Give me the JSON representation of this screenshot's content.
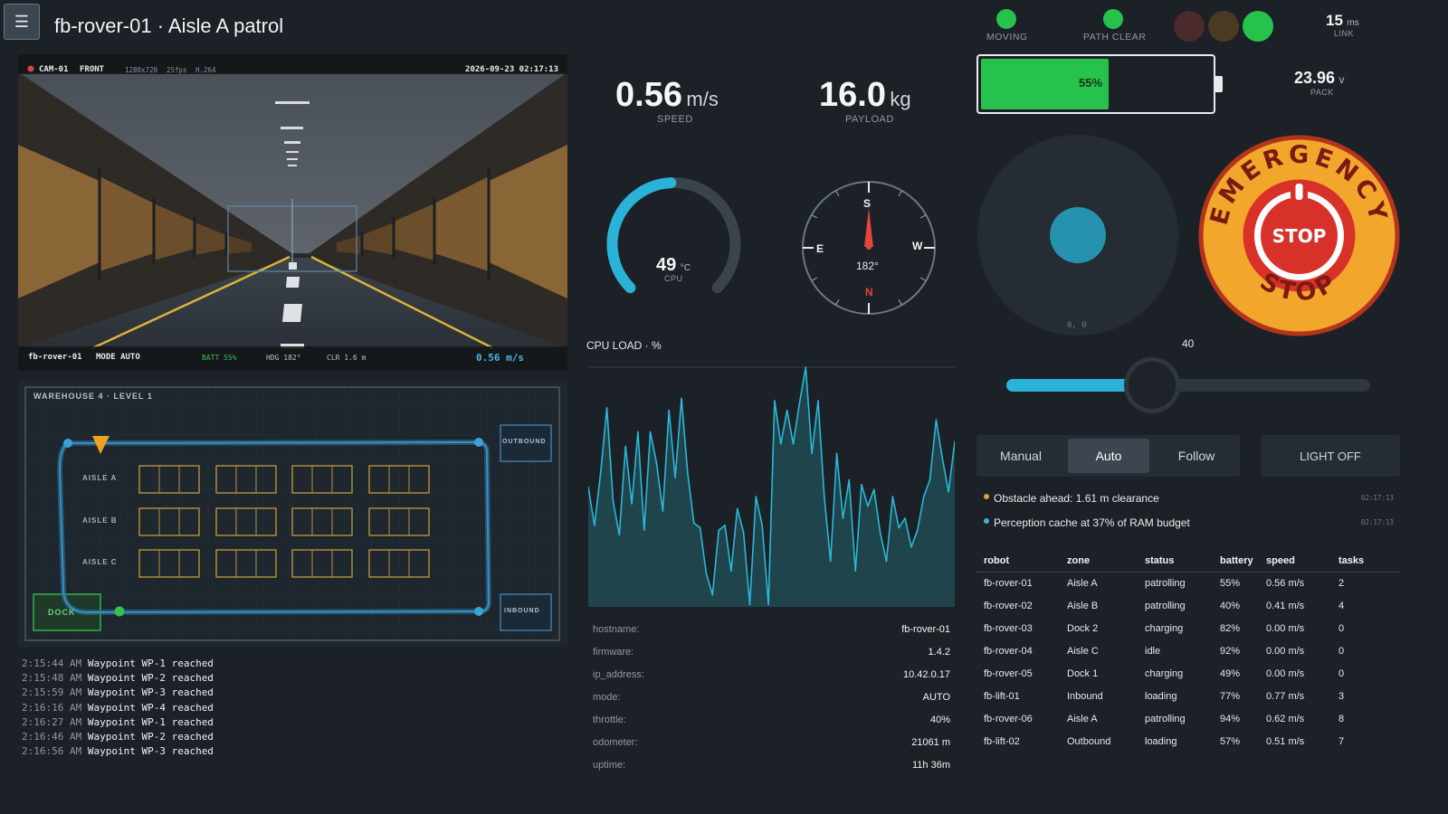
{
  "header": {
    "menu_icon": "hamburger-menu-icon",
    "title": "fb-rover-01 · Aisle A patrol"
  },
  "camera": {
    "cam_id": "CAM-01",
    "direction": "FRONT",
    "resolution": "1280x720",
    "fps": "25fps",
    "codec": "H.264",
    "timestamp": "2026-09-23 02:17:13",
    "robot": "fb-rover-01",
    "mode": "MODE AUTO",
    "battery": "BATT 55%",
    "heading": "HDG 182°",
    "clearance": "CLR 1.6 m",
    "speed": "0.56 m/s"
  },
  "map": {
    "title": "WAREHOUSE 4 · LEVEL 1",
    "aisles": [
      "AISLE A",
      "AISLE B",
      "AISLE C"
    ],
    "zones": {
      "outbound": "OUTBOUND",
      "inbound": "INBOUND",
      "dock": "DOCK"
    }
  },
  "log": [
    {
      "time": "2:15:44 AM",
      "msg": "Waypoint WP-1 reached"
    },
    {
      "time": "2:15:48 AM",
      "msg": "Waypoint WP-2 reached"
    },
    {
      "time": "2:15:59 AM",
      "msg": "Waypoint WP-3 reached"
    },
    {
      "time": "2:16:16 AM",
      "msg": "Waypoint WP-4 reached"
    },
    {
      "time": "2:16:27 AM",
      "msg": "Waypoint WP-1 reached"
    },
    {
      "time": "2:16:46 AM",
      "msg": "Waypoint WP-2 reached"
    },
    {
      "time": "2:16:56 AM",
      "msg": "Waypoint WP-3 reached"
    }
  ],
  "stats": {
    "speed": {
      "value": "0.56",
      "unit": "m/s",
      "label": "SPEED"
    },
    "payload": {
      "value": "16.0",
      "unit": "kg",
      "label": "PAYLOAD"
    }
  },
  "cpu_gauge": {
    "value": 49,
    "unit": "°C",
    "label": "CPU",
    "max": 100
  },
  "compass": {
    "heading": "182°",
    "n": "N",
    "s": "S",
    "e": "E",
    "w": "W"
  },
  "cpu_chart_title": "CPU LOAD · %",
  "chart_data": {
    "type": "area",
    "title": "CPU LOAD · %",
    "ylim": [
      0,
      100
    ],
    "grid": true,
    "series": [
      {
        "values": [
          50,
          34,
          56,
          83,
          44,
          30,
          67,
          43,
          73,
          32,
          73,
          60,
          40,
          82,
          54,
          87,
          56,
          35,
          33,
          14,
          5,
          32,
          34,
          15,
          41,
          31,
          1,
          46,
          34,
          1,
          86,
          68,
          82,
          68,
          85,
          100,
          64,
          86,
          46,
          19,
          64,
          37,
          53,
          15,
          51,
          42,
          49,
          31,
          19,
          46,
          33,
          37,
          25,
          32,
          46,
          53,
          78,
          62,
          48,
          69
        ]
      }
    ]
  },
  "system_info": [
    {
      "key": "hostname:",
      "value": "fb-rover-01"
    },
    {
      "key": "firmware:",
      "value": "1.4.2"
    },
    {
      "key": "ip_address:",
      "value": "10.42.0.17"
    },
    {
      "key": "mode:",
      "value": "AUTO"
    },
    {
      "key": "throttle:",
      "value": "40%"
    },
    {
      "key": "odometer:",
      "value": "21061 m"
    },
    {
      "key": "uptime:",
      "value": "11h 36m"
    }
  ],
  "status": {
    "moving": "MOVING",
    "path": "PATH CLEAR",
    "latency_value": "15",
    "latency_unit": "ms",
    "latency_label": "LINK",
    "colors": {
      "ok": "#27c24c",
      "warn": "#e0a030",
      "info": "#3ab6d6",
      "red_dim": "#4a2a2a",
      "amber_dim": "#4a3a22"
    }
  },
  "battery": {
    "percent": 55,
    "label": "55%",
    "voltage": "23.96",
    "voltage_unit": "v",
    "voltage_label": "PACK"
  },
  "joystick": {
    "readout": "0, 0"
  },
  "throttle": {
    "value": 40,
    "label": "40"
  },
  "estop": {
    "top_text": "EMERGENCY",
    "center_text": "STOP",
    "bottom_text": "STOP"
  },
  "modes": {
    "tabs": [
      "Manual",
      "Auto",
      "Follow"
    ],
    "active": "Auto",
    "light_button": "LIGHT OFF"
  },
  "alerts": [
    {
      "text": "Obstacle ahead: 1.61 m clearance",
      "time": "02:17:13",
      "level": "warn"
    },
    {
      "text": "Perception cache at 37% of RAM budget",
      "time": "02:17:13",
      "level": "info"
    }
  ],
  "fleet": {
    "columns": [
      "robot",
      "zone",
      "status",
      "battery",
      "speed",
      "tasks"
    ],
    "rows": [
      [
        "fb-rover-01",
        "Aisle A",
        "patrolling",
        "55%",
        "0.56 m/s",
        "2"
      ],
      [
        "fb-rover-02",
        "Aisle B",
        "patrolling",
        "40%",
        "0.41 m/s",
        "4"
      ],
      [
        "fb-rover-03",
        "Dock 2",
        "charging",
        "82%",
        "0.00 m/s",
        "0"
      ],
      [
        "fb-rover-04",
        "Aisle C",
        "idle",
        "92%",
        "0.00 m/s",
        "0"
      ],
      [
        "fb-rover-05",
        "Dock 1",
        "charging",
        "49%",
        "0.00 m/s",
        "0"
      ],
      [
        "fb-lift-01",
        "Inbound",
        "loading",
        "77%",
        "0.77 m/s",
        "3"
      ],
      [
        "fb-rover-06",
        "Aisle A",
        "patrolling",
        "94%",
        "0.62 m/s",
        "8"
      ],
      [
        "fb-lift-02",
        "Outbound",
        "loading",
        "57%",
        "0.51 m/s",
        "7"
      ]
    ]
  }
}
